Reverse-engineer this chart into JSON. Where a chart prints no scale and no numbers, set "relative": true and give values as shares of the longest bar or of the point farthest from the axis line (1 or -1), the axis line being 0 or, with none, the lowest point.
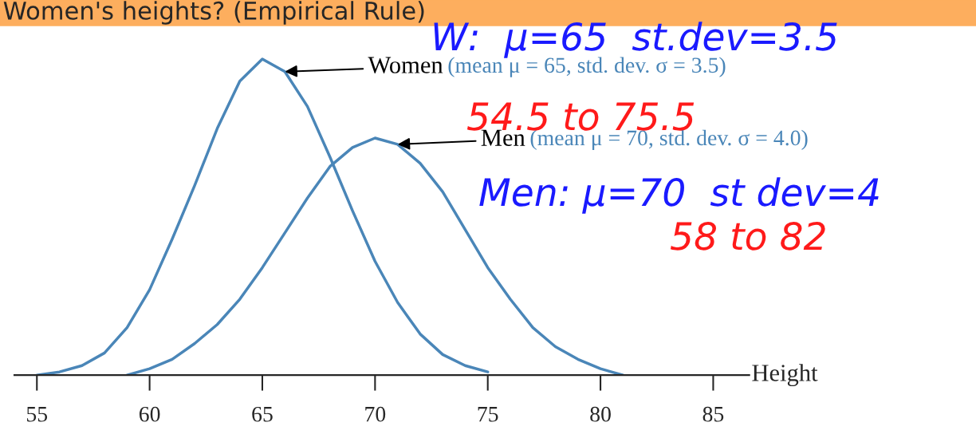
{
  "chart_data": {
    "type": "line",
    "title": "Women's heights? (Empirical Rule)",
    "xlabel": "Height",
    "relative": true,
    "xlim": [
      54,
      86.6
    ],
    "xticks": [
      55,
      60,
      65,
      70,
      75,
      80,
      85
    ],
    "grid": false,
    "legend": false,
    "series": [
      {
        "name": "Women",
        "color": "#4a86b8",
        "x": [
          55,
          56,
          57,
          58,
          59,
          60,
          61,
          62,
          63,
          64,
          65,
          66,
          67,
          68,
          69,
          70,
          71,
          72,
          73,
          74,
          75
        ],
        "values": [
          0.0,
          0.01,
          0.03,
          0.07,
          0.15,
          0.27,
          0.43,
          0.6,
          0.78,
          0.93,
          1.0,
          0.96,
          0.85,
          0.69,
          0.52,
          0.36,
          0.23,
          0.13,
          0.065,
          0.03,
          0.01
        ]
      },
      {
        "name": "Men",
        "color": "#4a86b8",
        "x": [
          59,
          60,
          61,
          62,
          63,
          64,
          65,
          66,
          67,
          68,
          69,
          70,
          71,
          72,
          73,
          74,
          75,
          76,
          77,
          78,
          79,
          80,
          81
        ],
        "values": [
          0.0,
          0.02,
          0.05,
          0.1,
          0.16,
          0.24,
          0.34,
          0.45,
          0.56,
          0.66,
          0.72,
          0.75,
          0.73,
          0.67,
          0.58,
          0.46,
          0.34,
          0.24,
          0.15,
          0.09,
          0.05,
          0.02,
          0.0
        ]
      }
    ],
    "annotations": [
      "(mean μ = 65, std. dev. σ = 3.5)",
      "(mean μ = 70, std. dev. σ = 4.0)",
      "W:  μ=65  st.dev=3.5",
      "54.5 to 75.5",
      "Men: μ=70  st dev=4",
      "58 to 82"
    ]
  }
}
